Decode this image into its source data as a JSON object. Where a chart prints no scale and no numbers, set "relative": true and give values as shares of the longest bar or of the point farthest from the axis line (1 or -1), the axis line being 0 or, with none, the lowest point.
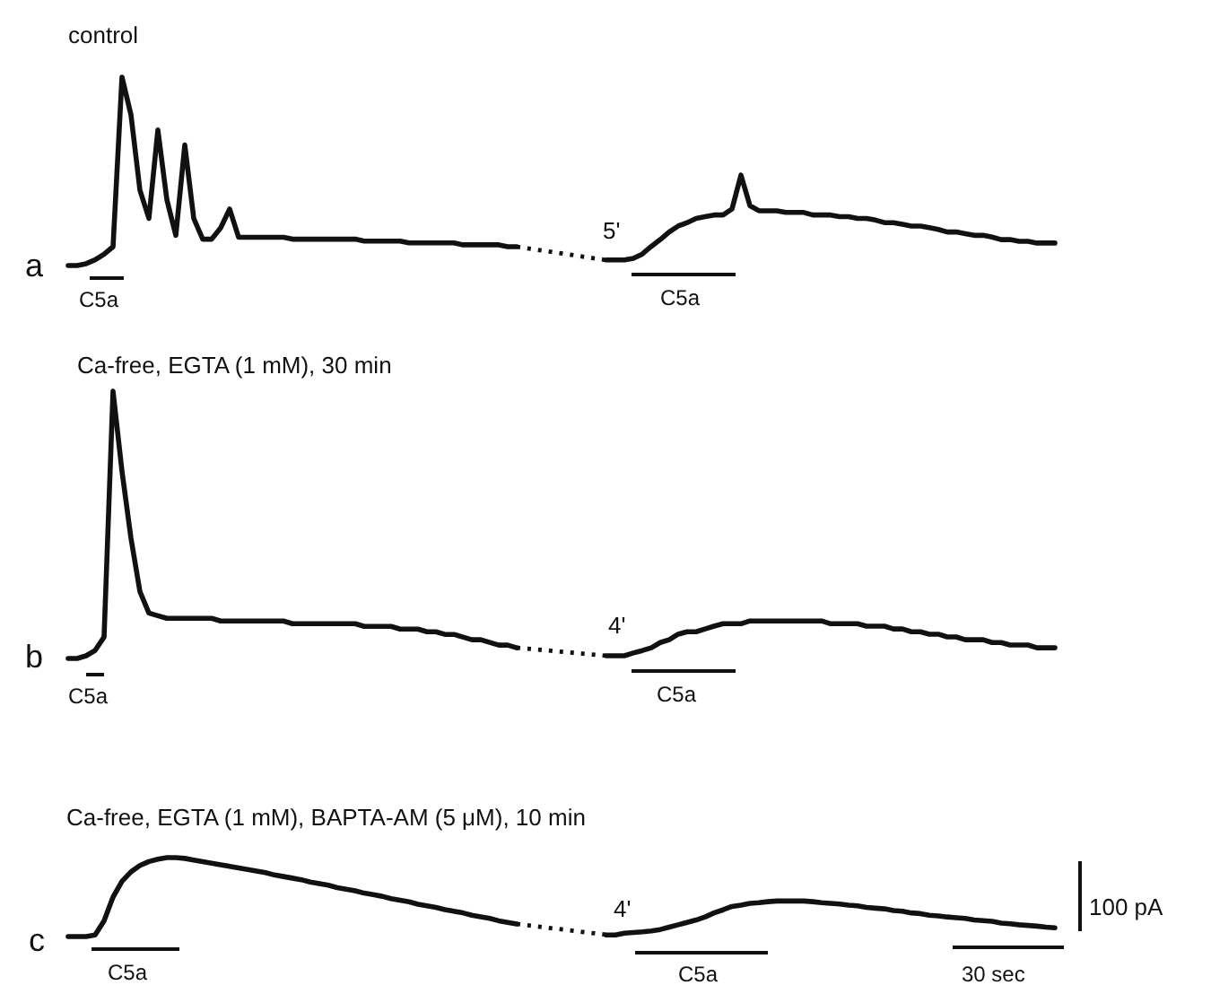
{
  "chart_data": [
    {
      "type": "line",
      "title": "control",
      "relative": true,
      "line_style": "solid",
      "categories": [
        null,
        null,
        null,
        null,
        null,
        null,
        null,
        null,
        null,
        null,
        null,
        null,
        null,
        null,
        null,
        null,
        null,
        null,
        null,
        null,
        null,
        null,
        null,
        null,
        null,
        null,
        null,
        null,
        null,
        null,
        null,
        null,
        null,
        null,
        null,
        null,
        null,
        null,
        null,
        null,
        null,
        null,
        null,
        null,
        null,
        null,
        null,
        null,
        null,
        null,
        null
      ],
      "series": [
        {
          "color": "#111111",
          "values": [
            0,
            0,
            0.01,
            0.03,
            0.06,
            0.1,
            1,
            0.8,
            0.4,
            0.25,
            0.72,
            0.35,
            0.16,
            0.64,
            0.25,
            0.14,
            0.14,
            0.2,
            0.3,
            0.15,
            0.15,
            0.15,
            0.15,
            0.15,
            0.15,
            0.14,
            0.14,
            0.14,
            0.14,
            0.14,
            0.14,
            0.14,
            0.14,
            0.13,
            0.13,
            0.13,
            0.13,
            0.13,
            0.12,
            0.12,
            0.12,
            0.12,
            0.12,
            0.12,
            0.11,
            0.11,
            0.11,
            0.11,
            0.11,
            0.1,
            0.1
          ]
        }
      ],
      "annotations": [
        "a",
        "C5a"
      ]
    },
    {
      "type": "line",
      "relative": true,
      "line_style": "solid",
      "categories": [
        null,
        null,
        null,
        null,
        null,
        null,
        null,
        null,
        null,
        null,
        null,
        null,
        null,
        null,
        null,
        null,
        null,
        null,
        null,
        null,
        null,
        null,
        null,
        null,
        null,
        null,
        null,
        null,
        null,
        null,
        null,
        null,
        null,
        null,
        null,
        null,
        null,
        null,
        null,
        null,
        null,
        null,
        null,
        null,
        null,
        null,
        null,
        null,
        null,
        null,
        null
      ],
      "series": [
        {
          "color": "#111111",
          "values": [
            0,
            0,
            0,
            0.02,
            0.07,
            0.16,
            0.24,
            0.33,
            0.4,
            0.44,
            0.49,
            0.51,
            0.53,
            0.53,
            0.6,
            1,
            0.64,
            0.58,
            0.58,
            0.58,
            0.56,
            0.56,
            0.56,
            0.53,
            0.53,
            0.53,
            0.51,
            0.51,
            0.49,
            0.49,
            0.47,
            0.44,
            0.44,
            0.42,
            0.4,
            0.4,
            0.38,
            0.36,
            0.33,
            0.33,
            0.31,
            0.29,
            0.29,
            0.27,
            0.24,
            0.24,
            0.22,
            0.22,
            0.2,
            0.2,
            0.2
          ]
        }
      ],
      "annotations": [
        "5'",
        "C5a"
      ]
    },
    {
      "type": "line",
      "title": "Ca-free, EGTA (1 mM), 30 min",
      "relative": true,
      "line_style": "solid",
      "categories": [
        null,
        null,
        null,
        null,
        null,
        null,
        null,
        null,
        null,
        null,
        null,
        null,
        null,
        null,
        null,
        null,
        null,
        null,
        null,
        null,
        null,
        null,
        null,
        null,
        null,
        null,
        null,
        null,
        null,
        null,
        null,
        null,
        null,
        null,
        null,
        null,
        null,
        null,
        null,
        null,
        null,
        null,
        null,
        null,
        null,
        null,
        null,
        null,
        null,
        null,
        null
      ],
      "series": [
        {
          "color": "#111111",
          "values": [
            0,
            0,
            0.01,
            0.03,
            0.08,
            1,
            0.7,
            0.45,
            0.25,
            0.17,
            0.16,
            0.15,
            0.15,
            0.15,
            0.15,
            0.15,
            0.15,
            0.14,
            0.14,
            0.14,
            0.14,
            0.14,
            0.14,
            0.14,
            0.14,
            0.13,
            0.13,
            0.13,
            0.13,
            0.13,
            0.13,
            0.13,
            0.13,
            0.12,
            0.12,
            0.12,
            0.12,
            0.11,
            0.11,
            0.11,
            0.1,
            0.1,
            0.09,
            0.09,
            0.08,
            0.07,
            0.07,
            0.06,
            0.05,
            0.05,
            0.04
          ]
        }
      ],
      "annotations": [
        "b",
        "C5a"
      ]
    },
    {
      "type": "line",
      "relative": true,
      "line_style": "solid",
      "categories": [
        null,
        null,
        null,
        null,
        null,
        null,
        null,
        null,
        null,
        null,
        null,
        null,
        null,
        null,
        null,
        null,
        null,
        null,
        null,
        null,
        null,
        null,
        null,
        null,
        null,
        null,
        null,
        null,
        null,
        null,
        null,
        null,
        null,
        null,
        null,
        null,
        null,
        null,
        null,
        null,
        null,
        null,
        null,
        null,
        null,
        null,
        null,
        null,
        null,
        null,
        null
      ],
      "series": [
        {
          "color": "#111111",
          "values": [
            0,
            0,
            0,
            0.08,
            0.15,
            0.23,
            0.38,
            0.46,
            0.62,
            0.69,
            0.69,
            0.77,
            0.85,
            0.92,
            0.92,
            0.92,
            1,
            1,
            1,
            1,
            1,
            1,
            1,
            1,
            1,
            0.92,
            0.92,
            0.92,
            0.92,
            0.85,
            0.85,
            0.85,
            0.77,
            0.77,
            0.69,
            0.69,
            0.62,
            0.62,
            0.54,
            0.54,
            0.46,
            0.46,
            0.46,
            0.38,
            0.38,
            0.31,
            0.31,
            0.31,
            0.23,
            0.23,
            0.23
          ]
        }
      ],
      "annotations": [
        "4'",
        "C5a"
      ]
    },
    {
      "type": "line",
      "title": "Ca-free, EGTA (1 mM), BAPTA-AM (5 μM), 10 min",
      "relative": true,
      "line_style": "solid",
      "categories": [
        null,
        null,
        null,
        null,
        null,
        null,
        null,
        null,
        null,
        null,
        null,
        null,
        null,
        null,
        null,
        null,
        null,
        null,
        null,
        null,
        null,
        null,
        null,
        null,
        null,
        null,
        null,
        null,
        null,
        null,
        null,
        null,
        null,
        null,
        null,
        null,
        null,
        null,
        null,
        null,
        null,
        null,
        null,
        null,
        null,
        null,
        null,
        null,
        null,
        null,
        null
      ],
      "series": [
        {
          "color": "#111111",
          "values": [
            0,
            0,
            0,
            0.02,
            0.2,
            0.5,
            0.7,
            0.82,
            0.9,
            0.95,
            0.98,
            1,
            1,
            0.99,
            0.97,
            0.95,
            0.93,
            0.91,
            0.89,
            0.87,
            0.85,
            0.83,
            0.81,
            0.78,
            0.76,
            0.74,
            0.72,
            0.69,
            0.67,
            0.65,
            0.62,
            0.6,
            0.58,
            0.55,
            0.53,
            0.51,
            0.48,
            0.46,
            0.44,
            0.41,
            0.39,
            0.37,
            0.34,
            0.32,
            0.3,
            0.27,
            0.25,
            0.23,
            0.2,
            0.18,
            0.16
          ]
        }
      ],
      "annotations": [
        "c",
        "C5a"
      ]
    },
    {
      "type": "line",
      "relative": true,
      "line_style": "solid",
      "categories": [
        null,
        null,
        null,
        null,
        null,
        null,
        null,
        null,
        null,
        null,
        null,
        null,
        null,
        null,
        null,
        null,
        null,
        null,
        null,
        null,
        null,
        null,
        null,
        null,
        null,
        null,
        null,
        null,
        null,
        null,
        null,
        null,
        null,
        null,
        null,
        null,
        null,
        null,
        null,
        null,
        null,
        null,
        null,
        null,
        null,
        null,
        null,
        null,
        null,
        null,
        null
      ],
      "series": [
        {
          "color": "#111111",
          "values": [
            0,
            0,
            0.05,
            0.07,
            0.09,
            0.12,
            0.16,
            0.23,
            0.3,
            0.37,
            0.44,
            0.53,
            0.65,
            0.74,
            0.84,
            0.88,
            0.93,
            0.95,
            0.98,
            1,
            1,
            1,
            1,
            0.98,
            0.95,
            0.93,
            0.91,
            0.88,
            0.86,
            0.81,
            0.79,
            0.77,
            0.72,
            0.7,
            0.65,
            0.63,
            0.58,
            0.56,
            0.53,
            0.51,
            0.49,
            0.44,
            0.42,
            0.4,
            0.35,
            0.33,
            0.3,
            0.28,
            0.26,
            0.23,
            0.21
          ]
        }
      ],
      "annotations": [
        "4'",
        "C5a",
        "100 pA",
        "30 sec"
      ]
    }
  ]
}
